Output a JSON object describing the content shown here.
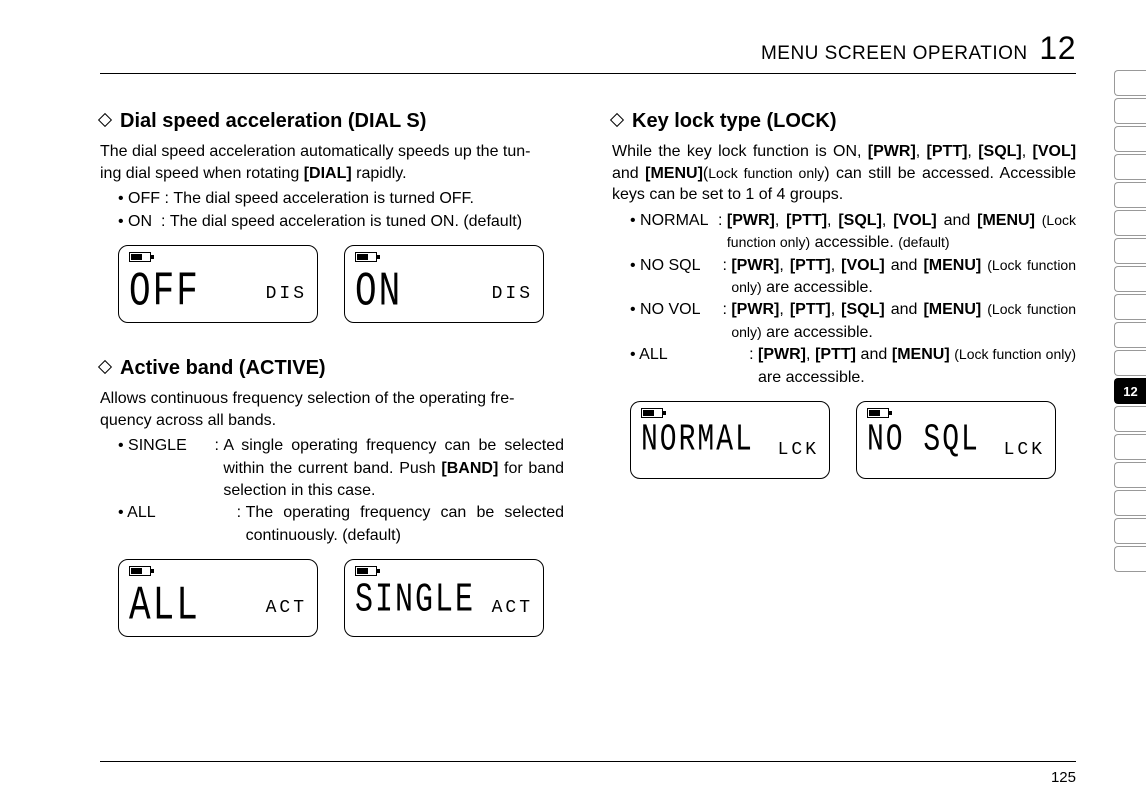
{
  "header": {
    "title": "MENU SCREEN OPERATION",
    "chapter": "12"
  },
  "page_number": "125",
  "side_tabs": {
    "count": 18,
    "active_index": 12,
    "active_label": "12"
  },
  "dial_s": {
    "title": "Dial speed acceleration (DIAL S)",
    "intro_a": "The dial speed acceleration automatically speeds up the tun-",
    "intro_b": "ing dial speed when rotating ",
    "intro_key": "[DIAL]",
    "intro_c": " rapidly.",
    "opts": [
      {
        "key": "• OFF",
        "sep": " : ",
        "val": "The dial speed acceleration is turned OFF."
      },
      {
        "key": "• ON",
        "sep": "  : ",
        "val": "The dial speed acceleration is tuned ON. (default)"
      }
    ],
    "lcd": [
      {
        "big": "OFF",
        "small": "DIS"
      },
      {
        "big": "ON",
        "small": "DIS"
      }
    ]
  },
  "active": {
    "title": "Active band (ACTIVE)",
    "intro_a": "Allows continuous frequency selection of the operating fre-",
    "intro_b": "quency across all bands.",
    "opts": [
      {
        "key": "• SINGLE",
        "sep": " : ",
        "val_a": "A single operating frequency can be selected within the current band. Push ",
        "val_key": "[BAND]",
        "val_b": " for band selection in this case."
      },
      {
        "key": "• ALL",
        "sep": "      : ",
        "val_a": "The operating frequency can be selected continuously. (default)",
        "val_key": "",
        "val_b": ""
      }
    ],
    "lcd": [
      {
        "big": "ALL",
        "small": "ACT"
      },
      {
        "big": "SINGLE",
        "small": "ACT"
      }
    ]
  },
  "lock": {
    "title": "Key lock type (LOCK)",
    "intro_a": "While the key lock function is ON, ",
    "k1": "[PWR]",
    "k2": "[PTT]",
    "k3": "[SQL]",
    "k4": "[VOL]",
    "k5": "[MENU]",
    "intro_b": " and ",
    "intro_c": "(",
    "intro_small": "Lock function only",
    "intro_d": ") can still be accessed. Accessible keys can be set to 1 of 4 groups.",
    "opts": [
      {
        "key": "• NORMAL",
        "sep": ": ",
        "pre": "",
        "b1": "[PWR]",
        "s1": ", ",
        "b2": "[PTT]",
        "s2": ", ",
        "b3": "[SQL]",
        "s3": ", ",
        "b4": "[VOL]",
        "s4": " and ",
        "b5": "[MENU]",
        "tail_a": " ",
        "tail_small": "(Lock function only)",
        "tail_b": " accessible. ",
        "tail_small2": "(default)",
        "tail_c": ""
      },
      {
        "key": "• NO SQL",
        "sep": " : ",
        "pre": "",
        "b1": "[PWR]",
        "s1": ", ",
        "b2": "[PTT]",
        "s2": ", ",
        "b3": "[VOL]",
        "s3": " and ",
        "b4": "[MENU]",
        "s4": "",
        "b5": "",
        "tail_a": " ",
        "tail_small": "(Lock function only)",
        "tail_b": " are accessible.",
        "tail_small2": "",
        "tail_c": ""
      },
      {
        "key": "• NO VOL",
        "sep": " : ",
        "pre": "",
        "b1": "[PWR]",
        "s1": ", ",
        "b2": "[PTT]",
        "s2": ", ",
        "b3": "[SQL]",
        "s3": " and ",
        "b4": "[MENU]",
        "s4": "",
        "b5": "",
        "tail_a": " ",
        "tail_small": "(Lock function only)",
        "tail_b": " are accessible.",
        "tail_small2": "",
        "tail_c": ""
      },
      {
        "key": "• ALL",
        "sep": "       : ",
        "pre": "",
        "b1": "[PWR]",
        "s1": ", ",
        "b2": "[PTT]",
        "s2": " and ",
        "b3": "[MENU]",
        "s3": "",
        "b4": "",
        "s4": "",
        "b5": "",
        "tail_a": " ",
        "tail_small": "(Lock function only)",
        "tail_b": " are accessible.",
        "tail_small2": "",
        "tail_c": ""
      }
    ],
    "lcd": [
      {
        "big": "NORMAL",
        "small": "LCK"
      },
      {
        "big": "NO SQL",
        "small": "LCK"
      }
    ]
  }
}
